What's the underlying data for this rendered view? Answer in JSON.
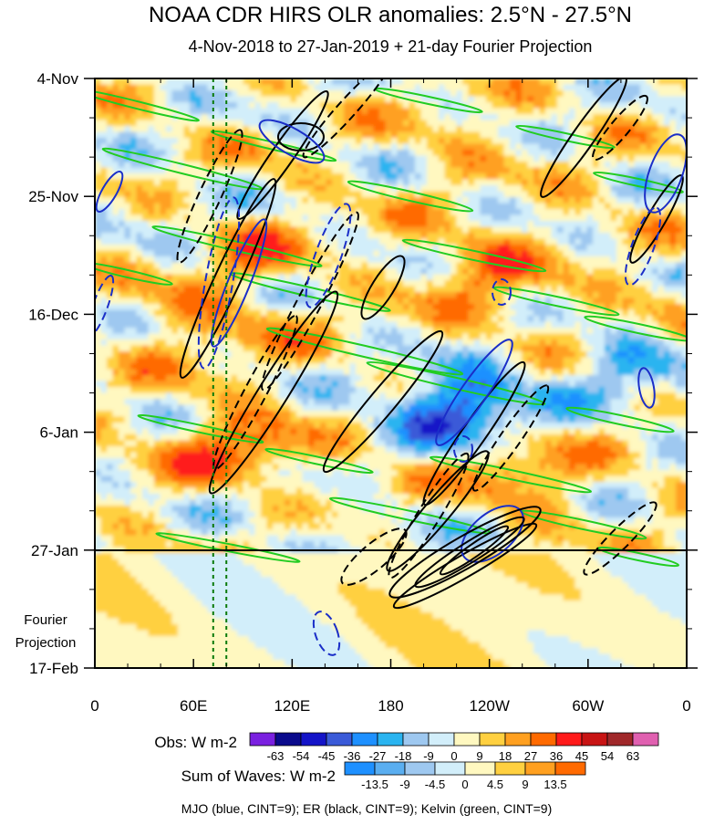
{
  "chart_data": {
    "type": "heatmap",
    "title": "NOAA CDR HIRS OLR anomalies: 2.5°N - 27.5°N",
    "subtitle": "4-Nov-2018 to 27-Jan-2019 + 21-day Fourier Projection",
    "x_ticks": [
      "0",
      "60E",
      "120E",
      "180",
      "120W",
      "60W",
      "0"
    ],
    "y_ticks": [
      "4-Nov",
      "25-Nov",
      "16-Dec",
      "6-Jan",
      "27-Jan",
      "17-Feb"
    ],
    "projection_label": [
      "Fourier",
      "Projection"
    ],
    "xlim_deg_east": [
      0,
      360
    ],
    "time_range": [
      "4-Nov-2018",
      "17-Feb-2019"
    ],
    "projection_start": "27-Jan",
    "reference_lines_deg_east": [
      72,
      80
    ],
    "obs_legend": {
      "label": "Obs: W m-2",
      "levels": [
        "-63",
        "-54",
        "-45",
        "-36",
        "-27",
        "-18",
        "-9",
        "0",
        "9",
        "18",
        "27",
        "36",
        "45",
        "54",
        "63"
      ],
      "colors": [
        "#7a20e0",
        "#0a0a8c",
        "#1414c8",
        "#3a5ad8",
        "#1e90ff",
        "#2ab4f0",
        "#9ec8f0",
        "#d2eefa",
        "#fff8c0",
        "#ffd040",
        "#ffa020",
        "#ff6a00",
        "#ff1a1a",
        "#c81414",
        "#a0282a",
        "#e060b0"
      ]
    },
    "waves_legend": {
      "label": "Sum of Waves: W m-2",
      "levels": [
        "-13.5",
        "-9",
        "-4.5",
        "0",
        "4.5",
        "9",
        "13.5"
      ],
      "colors": [
        "#1e90ff",
        "#5aaef0",
        "#9ec8f0",
        "#d2eefa",
        "#fff8c0",
        "#ffd040",
        "#ffa020",
        "#ff6a00"
      ]
    },
    "footnote": "MJO (blue, CINT=9); ER (black, CINT=9); Kelvin (green, CINT=9)",
    "series": [
      {
        "name": "MJO",
        "color": "#1a2ec8"
      },
      {
        "name": "ER",
        "color": "#000000"
      },
      {
        "name": "Kelvin",
        "color": "#22cc22"
      }
    ]
  }
}
